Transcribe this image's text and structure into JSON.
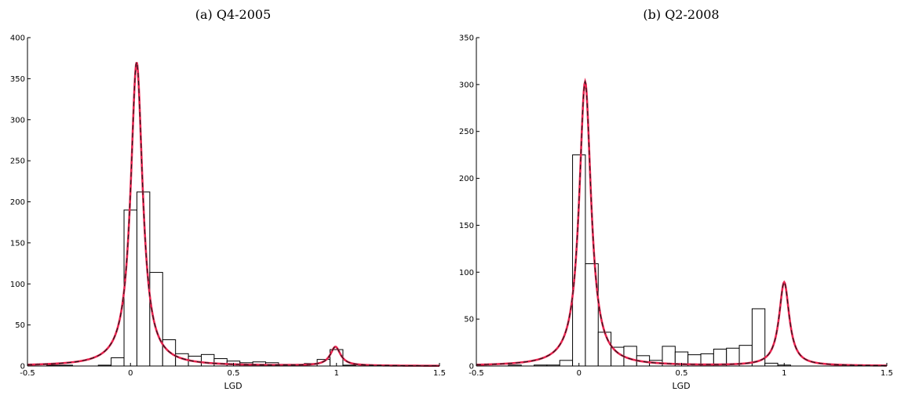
{
  "chart_data": [
    {
      "type": "bar",
      "title": "(a)  Q4-2005",
      "xlabel": "LGD",
      "ylabel": "",
      "xlim": [
        -0.5,
        1.5
      ],
      "ylim": [
        0,
        400
      ],
      "xticks": [
        "-0.5",
        "0",
        "0.5",
        "1",
        "1.5"
      ],
      "xtick_values": [
        -0.5,
        0,
        0.5,
        1,
        1.5
      ],
      "yticks": [
        "0",
        "50",
        "100",
        "150",
        "200",
        "250",
        "300",
        "350",
        "400"
      ],
      "ytick_values": [
        0,
        50,
        100,
        150,
        200,
        250,
        300,
        350,
        400
      ],
      "bin_width": 0.0625,
      "histogram": {
        "bin_centers": [
          -0.375,
          -0.3125,
          -0.25,
          -0.1875,
          -0.125,
          -0.0625,
          0.0,
          0.0625,
          0.125,
          0.1875,
          0.25,
          0.3125,
          0.375,
          0.4375,
          0.5,
          0.5625,
          0.625,
          0.6875,
          0.75,
          0.8125,
          0.875,
          0.9375,
          1.0,
          1.0625
        ],
        "counts": [
          1,
          1,
          0,
          0,
          1,
          10,
          190,
          212,
          114,
          32,
          15,
          12,
          14,
          9,
          6,
          4,
          5,
          4,
          2,
          2,
          3,
          8,
          20,
          1
        ]
      },
      "fitted_density": {
        "components": [
          {
            "center": 0.03,
            "height": 370,
            "width": 0.035
          },
          {
            "center": 0.995,
            "height": 23,
            "width": 0.03
          }
        ]
      },
      "colors": {
        "fit_solid": "#e8234f",
        "fit_dashed": "#1a1a1a",
        "bars": "#000000"
      }
    },
    {
      "type": "bar",
      "title": "(b)  Q2-2008",
      "xlabel": "LGD",
      "ylabel": "",
      "xlim": [
        -0.5,
        1.5
      ],
      "ylim": [
        0,
        350
      ],
      "xticks": [
        "-0.5",
        "0",
        "0.5",
        "1",
        "1.5"
      ],
      "xtick_values": [
        -0.5,
        0,
        0.5,
        1,
        1.5
      ],
      "yticks": [
        "0",
        "50",
        "100",
        "150",
        "200",
        "250",
        "300",
        "350"
      ],
      "ytick_values": [
        0,
        50,
        100,
        150,
        200,
        250,
        300,
        350
      ],
      "bin_width": 0.0625,
      "histogram": {
        "bin_centers": [
          -0.3125,
          -0.25,
          -0.1875,
          -0.125,
          -0.0625,
          0.0,
          0.0625,
          0.125,
          0.1875,
          0.25,
          0.3125,
          0.375,
          0.4375,
          0.5,
          0.5625,
          0.625,
          0.6875,
          0.75,
          0.8125,
          0.875,
          0.9375,
          1.0,
          1.0625,
          1.125
        ],
        "counts": [
          1,
          0,
          1,
          1,
          6,
          225,
          109,
          36,
          20,
          21,
          11,
          6,
          21,
          15,
          12,
          13,
          18,
          19,
          22,
          61,
          3,
          1,
          0,
          0
        ]
      },
      "fitted_density": {
        "components": [
          {
            "center": 0.03,
            "height": 303,
            "width": 0.035
          },
          {
            "center": 1.0,
            "height": 89,
            "width": 0.03
          }
        ]
      },
      "colors": {
        "fit_solid": "#e8234f",
        "fit_dashed": "#1a1a1a",
        "bars": "#000000"
      }
    }
  ]
}
